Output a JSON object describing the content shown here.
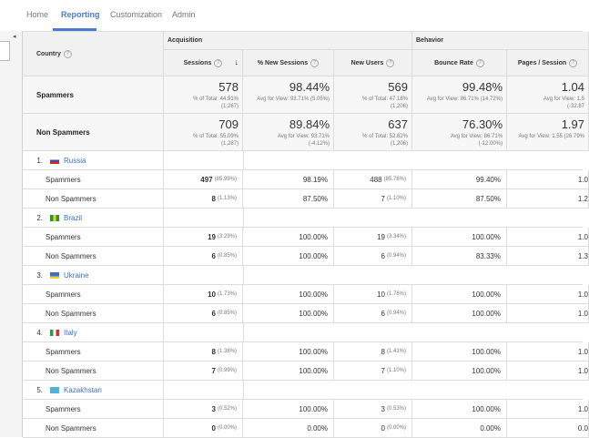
{
  "nav": {
    "tabs": [
      {
        "label": "Home",
        "active": false
      },
      {
        "label": "Reporting",
        "active": true
      },
      {
        "label": "Customization",
        "active": false
      },
      {
        "label": "Admin",
        "active": false
      }
    ]
  },
  "table": {
    "country_header": "Country",
    "group_acquisition": "Acquisition",
    "group_behavior": "Behavior",
    "columns": [
      "Sessions",
      "% New Sessions",
      "New Users",
      "Bounce Rate",
      "Pages / Session"
    ],
    "totals": [
      {
        "label": "Spammers",
        "sessions": {
          "value": "578",
          "sub1": "% of Total: 44.91%",
          "sub2": "(1,287)"
        },
        "new_sessions": {
          "value": "98.44%",
          "sub1": "Avg for View: 93.71% (5.05%)",
          "sub2": ""
        },
        "new_users": {
          "value": "569",
          "sub1": "% of Total: 47.18%",
          "sub2": "(1,206)"
        },
        "bounce": {
          "value": "99.48%",
          "sub1": "Avg for View: 86.71% (14.72%)",
          "sub2": ""
        },
        "pages": {
          "value": "1.04",
          "sub1": "Avg for View: 1.5",
          "sub2": "(-32.87"
        }
      },
      {
        "label": "Non Spammers",
        "sessions": {
          "value": "709",
          "sub1": "% of Total: 55.09%",
          "sub2": "(1,287)"
        },
        "new_sessions": {
          "value": "89.84%",
          "sub1": "Avg for View: 93.71%",
          "sub2": "(-4.12%)"
        },
        "new_users": {
          "value": "637",
          "sub1": "% of Total: 52.82%",
          "sub2": "(1,206)"
        },
        "bounce": {
          "value": "76.30%",
          "sub1": "Avg for View: 86.71%",
          "sub2": "(-12.00%)"
        },
        "pages": {
          "value": "1.97",
          "sub1": "Avg for View: 1.55 (26.79%",
          "sub2": ""
        }
      }
    ],
    "countries": [
      {
        "num": "1.",
        "name": "Russia",
        "flag": [
          "#ffffff",
          "#2b4fbf",
          "#d52b1e"
        ],
        "rows": [
          {
            "label": "Spammers",
            "sessions": "497",
            "sessions_pct": "(85.99%)",
            "new_sessions": "98.19%",
            "new_users": "488",
            "new_users_pct": "(85.76%)",
            "bounce": "99.40%",
            "pages": "1.0"
          },
          {
            "label": "Non Spammers",
            "sessions": "8",
            "sessions_pct": "(1.13%)",
            "new_sessions": "87.50%",
            "new_users": "7",
            "new_users_pct": "(1.10%)",
            "bounce": "87.50%",
            "pages": "1.2"
          }
        ]
      },
      {
        "num": "2.",
        "name": "Brazil",
        "flag": [
          "#1e9c3a",
          "#f7d117",
          "#1e9c3a"
        ],
        "rows": [
          {
            "label": "Spammers",
            "sessions": "19",
            "sessions_pct": "(3.29%)",
            "new_sessions": "100.00%",
            "new_users": "19",
            "new_users_pct": "(3.34%)",
            "bounce": "100.00%",
            "pages": "1.0"
          },
          {
            "label": "Non Spammers",
            "sessions": "6",
            "sessions_pct": "(0.85%)",
            "new_sessions": "100.00%",
            "new_users": "6",
            "new_users_pct": "(0.94%)",
            "bounce": "83.33%",
            "pages": "1.3"
          }
        ]
      },
      {
        "num": "3.",
        "name": "Ukraine",
        "flag": [
          "#3b6fd8",
          "#3b6fd8",
          "#f5d020"
        ],
        "rows": [
          {
            "label": "Spammers",
            "sessions": "10",
            "sessions_pct": "(1.73%)",
            "new_sessions": "100.00%",
            "new_users": "10",
            "new_users_pct": "(1.76%)",
            "bounce": "100.00%",
            "pages": "1.0"
          },
          {
            "label": "Non Spammers",
            "sessions": "6",
            "sessions_pct": "(0.85%)",
            "new_sessions": "100.00%",
            "new_users": "6",
            "new_users_pct": "(0.94%)",
            "bounce": "100.00%",
            "pages": "1.0"
          }
        ]
      },
      {
        "num": "4.",
        "name": "Italy",
        "flag": [
          "#2a9d45",
          "#ffffff",
          "#d32f2f"
        ],
        "rows": [
          {
            "label": "Spammers",
            "sessions": "8",
            "sessions_pct": "(1.38%)",
            "new_sessions": "100.00%",
            "new_users": "8",
            "new_users_pct": "(1.41%)",
            "bounce": "100.00%",
            "pages": "1.0"
          },
          {
            "label": "Non Spammers",
            "sessions": "7",
            "sessions_pct": "(0.99%)",
            "new_sessions": "100.00%",
            "new_users": "7",
            "new_users_pct": "(1.10%)",
            "bounce": "100.00%",
            "pages": "1.0"
          }
        ]
      },
      {
        "num": "5.",
        "name": "Kazakhstan",
        "flag": [
          "#4fb3d9",
          "#4fb3d9",
          "#4fb3d9"
        ],
        "rows": [
          {
            "label": "Spammers",
            "sessions": "3",
            "sessions_pct": "(0.52%)",
            "new_sessions": "100.00%",
            "new_users": "3",
            "new_users_pct": "(0.53%)",
            "bounce": "100.00%",
            "pages": "1.0"
          },
          {
            "label": "Non Spammers",
            "sessions": "0",
            "sessions_pct": "(0.00%)",
            "new_sessions": "0.00%",
            "new_users": "0",
            "new_users_pct": "(0.00%)",
            "bounce": "0.00%",
            "pages": "0.0"
          }
        ]
      }
    ]
  },
  "icons": {
    "help": "help-icon",
    "sort": "sort-down-arrow-icon",
    "collapse": "collapse-left-icon"
  }
}
